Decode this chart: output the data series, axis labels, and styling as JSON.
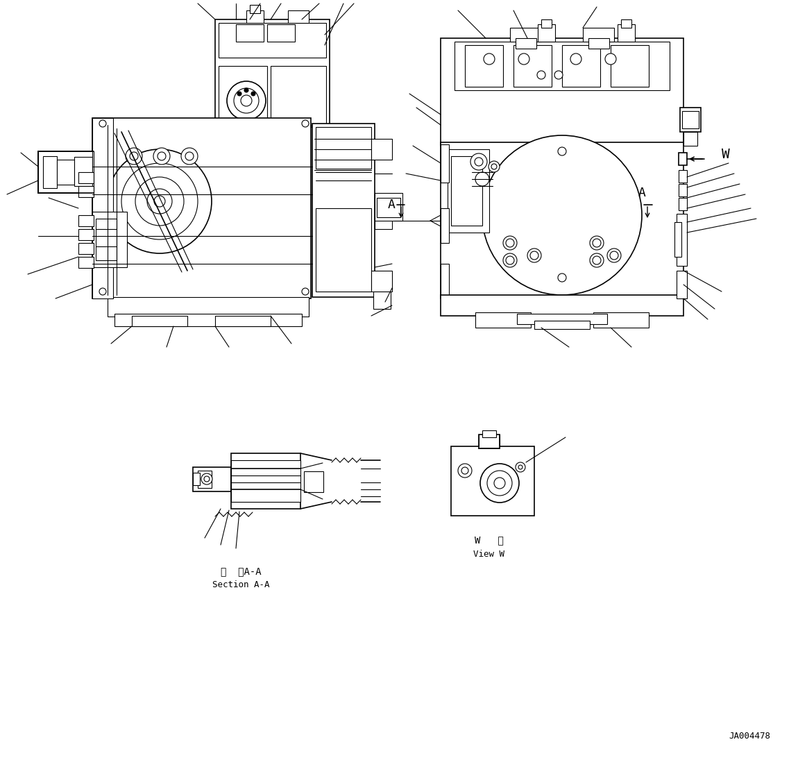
{
  "bg_color": "#ffffff",
  "line_color": "#000000",
  "fig_width": 11.63,
  "fig_height": 10.92,
  "dpi": 100,
  "part_number": "JA004478",
  "label_section_aa_jp": "断  面A-A",
  "label_section_aa_en": "Section A-A",
  "label_view_w_jp": "W   視",
  "label_view_w_en": "View W",
  "label_A": "A",
  "label_W": "W",
  "lw": 0.8,
  "lw2": 1.2,
  "lw3": 1.6
}
